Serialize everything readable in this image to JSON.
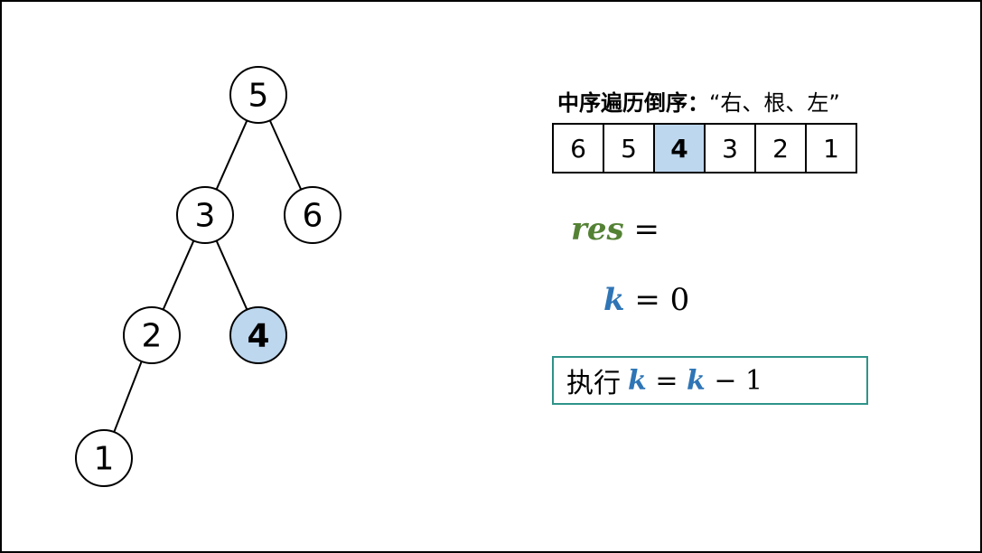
{
  "tree": {
    "nodes": [
      {
        "id": "n5",
        "label": "5",
        "highlight": false
      },
      {
        "id": "n3",
        "label": "3",
        "highlight": false
      },
      {
        "id": "n6",
        "label": "6",
        "highlight": false
      },
      {
        "id": "n2",
        "label": "2",
        "highlight": false
      },
      {
        "id": "n4",
        "label": "4",
        "highlight": true
      },
      {
        "id": "n1",
        "label": "1",
        "highlight": false
      }
    ],
    "edges": [
      [
        "n5",
        "n3"
      ],
      [
        "n5",
        "n6"
      ],
      [
        "n3",
        "n2"
      ],
      [
        "n3",
        "n4"
      ],
      [
        "n2",
        "n1"
      ]
    ]
  },
  "order": {
    "title_bold": "中序遍历倒序：",
    "title_rest": "“右、根、左”",
    "values": [
      "6",
      "5",
      "4",
      "3",
      "2",
      "1"
    ],
    "highlight_index": 2
  },
  "res_line": {
    "var": "res",
    "op": " ="
  },
  "k_line": {
    "var": "k",
    "rest": " = 0"
  },
  "exec": {
    "prefix": "执行",
    "var1": "k",
    "eq": " = ",
    "var2": "k",
    "rest": " − 1"
  },
  "colors": {
    "highlight_fill": "#bdd7ee",
    "res_color": "#548235",
    "k_color": "#2e75b6",
    "box_border": "#2e9389"
  }
}
